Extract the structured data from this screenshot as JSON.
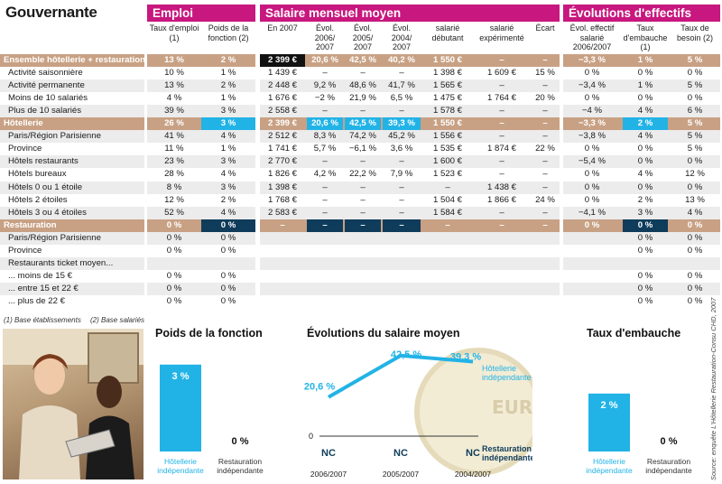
{
  "title": "Gouvernante",
  "headers": {
    "emploi": "Emploi",
    "salaire": "Salaire mensuel moyen",
    "evolutions": "Évolutions d'effectifs"
  },
  "columns": [
    "Taux d'emploi (1)",
    "Poids de la fonction (2)",
    "En 2007",
    "Évol. 2006/ 2007",
    "Évol. 2005/ 2007",
    "Évol. 2004/ 2007",
    "salarié débutant",
    "salarié expérimenté",
    "Écart",
    "Évol. effectif salarié 2006/2007",
    "Taux d'embauche (1)",
    "Taux de besoin (2)"
  ],
  "rows": [
    {
      "label": "Ensemble hôtellerie + restauration",
      "type": "section",
      "hl": "black",
      "cells": [
        "13 %",
        "2 %",
        "2 399 €",
        "20,6 %",
        "42,5 %",
        "40,2 %",
        "1 550 €",
        "–",
        "–",
        "−3,3 %",
        "1 %",
        "5 %"
      ]
    },
    {
      "label": "Activité saisonnière",
      "type": "data",
      "cells": [
        "10 %",
        "1 %",
        "1 439 €",
        "–",
        "–",
        "–",
        "1 398 €",
        "1 609 €",
        "15 %",
        "0 %",
        "0 %",
        "0 %"
      ]
    },
    {
      "label": "Activité permanente",
      "type": "data",
      "cells": [
        "13 %",
        "2 %",
        "2 448 €",
        "9,2 %",
        "48,6 %",
        "41,7 %",
        "1 565 €",
        "–",
        "–",
        "−3,4 %",
        "1 %",
        "5 %"
      ]
    },
    {
      "label": "Moins de 10 salariés",
      "type": "data",
      "cells": [
        "4 %",
        "1 %",
        "1 676 €",
        "−2 %",
        "21,9 %",
        "6,5 %",
        "1 475 €",
        "1 764 €",
        "20 %",
        "0 %",
        "0 %",
        "0 %"
      ]
    },
    {
      "label": "Plus de 10 salariés",
      "type": "data",
      "cells": [
        "39 %",
        "3 %",
        "2 558 €",
        "–",
        "–",
        "–",
        "1 578 €",
        "–",
        "–",
        "−4 %",
        "4 %",
        "6 %"
      ]
    },
    {
      "label": "Hôtellerie",
      "type": "section",
      "hl": "cyan",
      "cells": [
        "26 %",
        "3 %",
        "2 399 €",
        "20,6 %",
        "42,5 %",
        "39,3 %",
        "1 550 €",
        "–",
        "–",
        "−3,3 %",
        "2 %",
        "5 %"
      ]
    },
    {
      "label": "Paris/Région Parisienne",
      "type": "data",
      "cells": [
        "41 %",
        "4 %",
        "2 512 €",
        "8,3 %",
        "74,2 %",
        "45,2 %",
        "1 556 €",
        "–",
        "–",
        "−3,8 %",
        "4 %",
        "5 %"
      ]
    },
    {
      "label": "Province",
      "type": "data",
      "cells": [
        "11 %",
        "1 %",
        "1 741 €",
        "5,7 %",
        "−6,1 %",
        "3,6 %",
        "1 535 €",
        "1 874 €",
        "22 %",
        "0 %",
        "0 %",
        "5 %"
      ]
    },
    {
      "label": "Hôtels restaurants",
      "type": "data",
      "cells": [
        "23 %",
        "3 %",
        "2 770 €",
        "–",
        "–",
        "–",
        "1 600 €",
        "–",
        "–",
        "−5,4 %",
        "0 %",
        "0 %"
      ]
    },
    {
      "label": "Hôtels bureaux",
      "type": "data",
      "cells": [
        "28 %",
        "4 %",
        "1 826 €",
        "4,2 %",
        "22,2 %",
        "7,9 %",
        "1 523 €",
        "–",
        "–",
        "0 %",
        "4 %",
        "12 %"
      ]
    },
    {
      "label": "Hôtels 0 ou 1 étoile",
      "type": "data",
      "cells": [
        "8 %",
        "3 %",
        "1 398 €",
        "–",
        "–",
        "–",
        "–",
        "1 438 €",
        "–",
        "0 %",
        "0 %",
        "0 %"
      ]
    },
    {
      "label": "Hôtels 2 étoiles",
      "type": "data",
      "cells": [
        "12 %",
        "2 %",
        "1 768 €",
        "–",
        "–",
        "–",
        "1 504 €",
        "1 866 €",
        "24 %",
        "0 %",
        "2 %",
        "13 %"
      ]
    },
    {
      "label": "Hôtels 3 ou 4 étoiles",
      "type": "data",
      "cells": [
        "52 %",
        "4 %",
        "2 583 €",
        "–",
        "–",
        "–",
        "1 584 €",
        "–",
        "–",
        "−4,1 %",
        "3 %",
        "4 %"
      ]
    },
    {
      "label": "Restauration",
      "type": "section",
      "hl": "navy",
      "cells": [
        "0 %",
        "0 %",
        "–",
        "–",
        "–",
        "–",
        "–",
        "–",
        "–",
        "0 %",
        "0 %",
        "0 %"
      ]
    },
    {
      "label": "Paris/Région Parisienne",
      "type": "data",
      "cells": [
        "0 %",
        "0 %",
        "",
        "",
        "",
        "",
        "",
        "",
        "",
        "",
        "0 %",
        "0 %"
      ]
    },
    {
      "label": "Province",
      "type": "data",
      "cells": [
        "0 %",
        "0 %",
        "",
        "",
        "",
        "",
        "",
        "",
        "",
        "",
        "0 %",
        "0 %"
      ]
    },
    {
      "label": "Restaurants ticket moyen...",
      "type": "data",
      "cells": [
        "",
        "",
        "",
        "",
        "",
        "",
        "",
        "",
        "",
        "",
        "",
        ""
      ]
    },
    {
      "label": "... moins de 15 €",
      "type": "data",
      "cells": [
        "0 %",
        "0 %",
        "",
        "",
        "",
        "",
        "",
        "",
        "",
        "",
        "0 %",
        "0 %"
      ]
    },
    {
      "label": "... entre 15 et 22 €",
      "type": "data",
      "cells": [
        "0 %",
        "0 %",
        "",
        "",
        "",
        "",
        "",
        "",
        "",
        "",
        "0 %",
        "0 %"
      ]
    },
    {
      "label": "... plus de 22 €",
      "type": "data",
      "cells": [
        "0 %",
        "0 %",
        "",
        "",
        "",
        "",
        "",
        "",
        "",
        "",
        "0 %",
        "0 %"
      ]
    }
  ],
  "footnotes": [
    "(1) Base établissements",
    "(2) Base salariés"
  ],
  "source": "Source: enquête L'Hôtellerie Restauration-Consu CHD, 2007",
  "chart_data": [
    {
      "type": "bar",
      "title": "Poids de la fonction",
      "categories": [
        "Hôtellerie indépendante",
        "Restauration indépendante"
      ],
      "values": [
        3,
        0
      ],
      "labels": [
        "3 %",
        "0 %"
      ],
      "ylim": [
        0,
        3.6
      ]
    },
    {
      "type": "line",
      "title": "Évolutions du salaire moyen",
      "categories": [
        "2006/2007",
        "2005/2007",
        "2004/2007"
      ],
      "series": [
        {
          "name": "Hôtellerie indépendante",
          "values": [
            20.6,
            42.5,
            39.3
          ],
          "labels": [
            "20,6 %",
            "42,5 %",
            "39,3 %"
          ],
          "color": "#22b3e6"
        },
        {
          "name": "Restauration indépendante",
          "values": [
            "NC",
            "NC",
            "NC"
          ],
          "color": "#0e3c5a"
        }
      ],
      "ylabel": "0",
      "ylim": [
        0,
        50
      ]
    },
    {
      "type": "bar",
      "title": "Taux d'embauche",
      "categories": [
        "Hôtellerie indépendante",
        "Restauration indépendante"
      ],
      "values": [
        2,
        0
      ],
      "labels": [
        "2 %",
        "0 %"
      ],
      "ylim": [
        0,
        3.6
      ]
    }
  ],
  "colors": {
    "magenta": "#c8177e",
    "cyan": "#22b3e6",
    "navy": "#0e3c5a",
    "tan": "#c8a184"
  }
}
